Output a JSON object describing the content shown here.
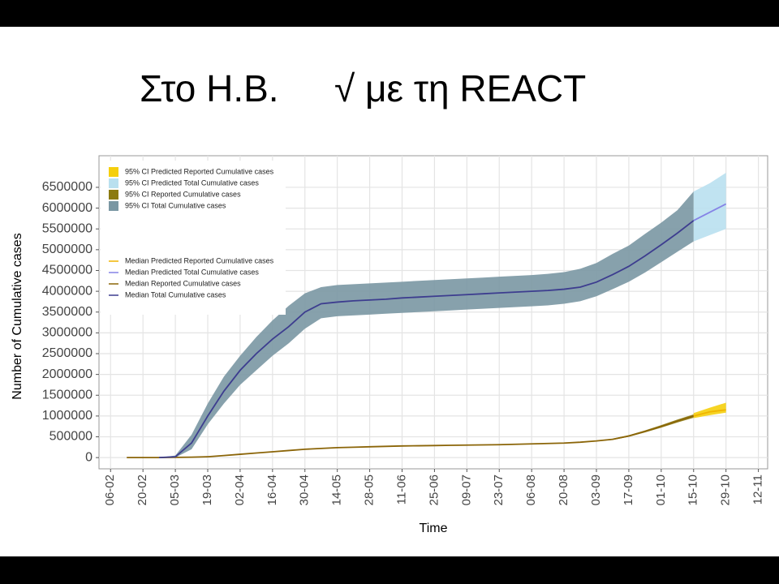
{
  "chart_data": {
    "type": "line",
    "title": "Στο Η.Β.",
    "subtitle": "√ με τη REACT",
    "x_label": "Time",
    "y_label": "Number of Cumulative cases",
    "x": [
      7,
      14,
      21,
      28,
      35,
      42,
      49,
      56,
      63,
      70,
      77,
      84,
      91,
      98,
      105,
      112,
      119,
      126,
      133,
      140,
      147,
      154,
      161,
      168,
      175,
      182,
      189,
      196,
      203,
      210,
      217,
      224,
      231,
      238,
      245,
      252,
      259,
      266
    ],
    "xlim": [
      -5,
      284
    ],
    "xticks": [
      {
        "value": 0,
        "label": "06-02"
      },
      {
        "value": 14,
        "label": "20-02"
      },
      {
        "value": 28,
        "label": "05-03"
      },
      {
        "value": 42,
        "label": "19-03"
      },
      {
        "value": 56,
        "label": "02-04"
      },
      {
        "value": 70,
        "label": "16-04"
      },
      {
        "value": 84,
        "label": "30-04"
      },
      {
        "value": 98,
        "label": "14-05"
      },
      {
        "value": 112,
        "label": "28-05"
      },
      {
        "value": 126,
        "label": "11-06"
      },
      {
        "value": 140,
        "label": "25-06"
      },
      {
        "value": 154,
        "label": "09-07"
      },
      {
        "value": 168,
        "label": "23-07"
      },
      {
        "value": 182,
        "label": "06-08"
      },
      {
        "value": 196,
        "label": "20-08"
      },
      {
        "value": 210,
        "label": "03-09"
      },
      {
        "value": 224,
        "label": "17-09"
      },
      {
        "value": 238,
        "label": "01-10"
      },
      {
        "value": 252,
        "label": "15-10"
      },
      {
        "value": 266,
        "label": "29-10"
      },
      {
        "value": 280,
        "label": "12-11"
      }
    ],
    "ylim": [
      -270000,
      7260000
    ],
    "yticks": [
      0,
      500000,
      1000000,
      1500000,
      2000000,
      2500000,
      3000000,
      3500000,
      4000000,
      4500000,
      5000000,
      5500000,
      6000000,
      6500000
    ],
    "grid": true,
    "legend": "top-left",
    "bands": [
      {
        "name": "95% CI Predicted Reported Cumulative cases",
        "color": "#f5cf0c",
        "lower": [
          null,
          null,
          null,
          null,
          null,
          null,
          null,
          null,
          null,
          null,
          null,
          null,
          null,
          null,
          null,
          null,
          null,
          null,
          null,
          null,
          null,
          null,
          null,
          null,
          null,
          null,
          null,
          null,
          null,
          null,
          null,
          null,
          null,
          null,
          null,
          950000,
          1020000,
          1080000
        ],
        "upper": [
          null,
          null,
          null,
          null,
          null,
          null,
          null,
          null,
          null,
          null,
          null,
          null,
          null,
          null,
          null,
          null,
          null,
          null,
          null,
          null,
          null,
          null,
          null,
          null,
          null,
          null,
          null,
          null,
          null,
          null,
          null,
          null,
          null,
          null,
          null,
          1070000,
          1200000,
          1320000
        ]
      },
      {
        "name": "95% CI Predicted Total Cumulative cases",
        "color": "#b9e0ef",
        "lower": [
          null,
          null,
          null,
          null,
          null,
          null,
          null,
          null,
          null,
          null,
          null,
          null,
          null,
          null,
          null,
          null,
          null,
          null,
          null,
          null,
          null,
          null,
          null,
          null,
          null,
          null,
          null,
          null,
          null,
          null,
          null,
          null,
          null,
          null,
          null,
          5200000,
          5350000,
          5500000
        ],
        "upper": [
          null,
          null,
          null,
          null,
          null,
          null,
          null,
          null,
          null,
          null,
          null,
          null,
          null,
          null,
          null,
          null,
          null,
          null,
          null,
          null,
          null,
          null,
          null,
          null,
          null,
          null,
          null,
          null,
          null,
          null,
          null,
          null,
          null,
          null,
          null,
          6400000,
          6600000,
          6850000
        ]
      },
      {
        "name": "95% CI Reported Cumulative cases",
        "color": "#8b7a10",
        "lower": [
          null,
          null,
          null,
          null,
          null,
          null,
          null,
          null,
          null,
          null,
          null,
          null,
          null,
          null,
          null,
          null,
          null,
          null,
          null,
          null,
          null,
          null,
          null,
          null,
          null,
          null,
          null,
          null,
          360000,
          390000,
          425000,
          500000,
          605000,
          720000,
          845000,
          960000,
          null,
          null
        ],
        "upper": [
          null,
          null,
          null,
          null,
          null,
          null,
          null,
          null,
          null,
          null,
          null,
          null,
          null,
          null,
          null,
          null,
          null,
          null,
          null,
          null,
          null,
          null,
          null,
          null,
          null,
          null,
          null,
          null,
          380000,
          410000,
          455000,
          540000,
          655000,
          780000,
          915000,
          1040000,
          null,
          null
        ]
      },
      {
        "name": "95% CI Total Cumulative cases",
        "color": "#7a97a3",
        "lower": [
          null,
          null,
          0,
          0,
          200000,
          800000,
          1300000,
          1750000,
          2100000,
          2450000,
          2750000,
          3100000,
          3350000,
          3400000,
          3420000,
          3440000,
          3460000,
          3480000,
          3500000,
          3520000,
          3540000,
          3560000,
          3580000,
          3600000,
          3620000,
          3640000,
          3660000,
          3700000,
          3760000,
          3880000,
          4050000,
          4230000,
          4450000,
          4700000,
          4950000,
          5200000,
          null,
          null
        ],
        "upper": [
          null,
          null,
          0,
          50000,
          550000,
          1300000,
          1950000,
          2450000,
          2900000,
          3300000,
          3650000,
          3950000,
          4100000,
          4150000,
          4170000,
          4190000,
          4210000,
          4230000,
          4250000,
          4270000,
          4290000,
          4310000,
          4330000,
          4350000,
          4370000,
          4390000,
          4420000,
          4460000,
          4540000,
          4680000,
          4900000,
          5100000,
          5380000,
          5650000,
          5950000,
          6400000,
          null,
          null
        ]
      }
    ],
    "series": [
      {
        "name": "Median Predicted Reported Cumulative cases",
        "color": "#f0b400",
        "values": [
          null,
          null,
          null,
          null,
          null,
          null,
          null,
          null,
          null,
          null,
          null,
          null,
          null,
          null,
          null,
          null,
          null,
          null,
          null,
          null,
          null,
          null,
          null,
          null,
          null,
          null,
          null,
          null,
          null,
          null,
          null,
          null,
          null,
          null,
          null,
          1000000,
          1100000,
          1150000
        ]
      },
      {
        "name": "Median Predicted Total Cumulative cases",
        "color": "#8583e6",
        "values": [
          null,
          null,
          null,
          null,
          null,
          null,
          null,
          null,
          null,
          null,
          null,
          null,
          null,
          null,
          null,
          null,
          null,
          null,
          null,
          null,
          null,
          null,
          null,
          null,
          null,
          null,
          null,
          null,
          null,
          null,
          null,
          null,
          null,
          null,
          null,
          5700000,
          5900000,
          6100000
        ]
      },
      {
        "name": "Median Reported Cumulative cases",
        "color": "#8b6508",
        "values": [
          0,
          0,
          0,
          5000,
          10000,
          20000,
          50000,
          80000,
          110000,
          140000,
          170000,
          200000,
          220000,
          240000,
          250000,
          260000,
          270000,
          280000,
          285000,
          290000,
          295000,
          300000,
          305000,
          310000,
          320000,
          330000,
          340000,
          350000,
          370000,
          400000,
          440000,
          520000,
          630000,
          750000,
          880000,
          1000000,
          null,
          null
        ]
      },
      {
        "name": "Median Total Cumulative cases",
        "color": "#3d3d8f",
        "values": [
          null,
          null,
          0,
          20000,
          350000,
          1000000,
          1600000,
          2100000,
          2500000,
          2850000,
          3150000,
          3500000,
          3700000,
          3740000,
          3770000,
          3790000,
          3810000,
          3840000,
          3860000,
          3880000,
          3900000,
          3920000,
          3940000,
          3960000,
          3980000,
          4000000,
          4020000,
          4050000,
          4100000,
          4220000,
          4400000,
          4600000,
          4850000,
          5120000,
          5400000,
          5700000,
          null,
          null
        ]
      }
    ]
  }
}
